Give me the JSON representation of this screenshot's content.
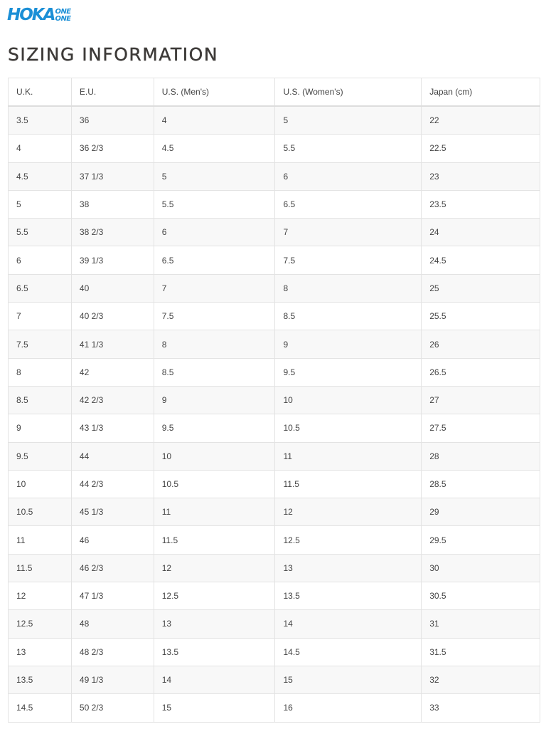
{
  "logo": {
    "main": "HOKA",
    "sub1": "ONE",
    "sub2": "ONE",
    "color": "#1b8fd6"
  },
  "title": "SIZING INFORMATION",
  "table": {
    "headers": [
      "U.K.",
      "E.U.",
      "U.S. (Men's)",
      "U.S. (Women's)",
      "Japan (cm)"
    ],
    "rows": [
      [
        "3.5",
        "36",
        "4",
        "5",
        "22"
      ],
      [
        "4",
        "36 2/3",
        "4.5",
        "5.5",
        "22.5"
      ],
      [
        "4.5",
        "37 1/3",
        "5",
        "6",
        "23"
      ],
      [
        "5",
        "38",
        "5.5",
        "6.5",
        "23.5"
      ],
      [
        "5.5",
        "38 2/3",
        "6",
        "7",
        "24"
      ],
      [
        "6",
        "39 1/3",
        "6.5",
        "7.5",
        "24.5"
      ],
      [
        "6.5",
        "40",
        "7",
        "8",
        "25"
      ],
      [
        "7",
        "40 2/3",
        "7.5",
        "8.5",
        "25.5"
      ],
      [
        "7.5",
        "41 1/3",
        "8",
        "9",
        "26"
      ],
      [
        "8",
        "42",
        "8.5",
        "9.5",
        "26.5"
      ],
      [
        "8.5",
        "42 2/3",
        "9",
        "10",
        "27"
      ],
      [
        "9",
        "43 1/3",
        "9.5",
        "10.5",
        "27.5"
      ],
      [
        "9.5",
        "44",
        "10",
        "11",
        "28"
      ],
      [
        "10",
        "44 2/3",
        "10.5",
        "11.5",
        "28.5"
      ],
      [
        "10.5",
        "45 1/3",
        "11",
        "12",
        "29"
      ],
      [
        "11",
        "46",
        "11.5",
        "12.5",
        "29.5"
      ],
      [
        "11.5",
        "46 2/3",
        "12",
        "13",
        "30"
      ],
      [
        "12",
        "47 1/3",
        "12.5",
        "13.5",
        "30.5"
      ],
      [
        "12.5",
        "48",
        "13",
        "14",
        "31"
      ],
      [
        "13",
        "48 2/3",
        "13.5",
        "14.5",
        "31.5"
      ],
      [
        "13.5",
        "49 1/3",
        "14",
        "15",
        "32"
      ],
      [
        "14.5",
        "50 2/3",
        "15",
        "16",
        "33"
      ]
    ]
  }
}
